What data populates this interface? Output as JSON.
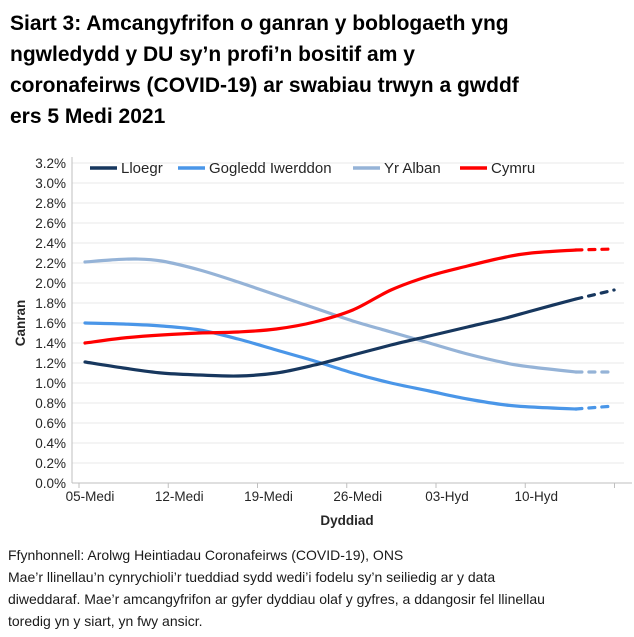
{
  "page": {
    "title": "Siart 3: Amcangyfrifon o ganran y boblogaeth yng\nngwledydd y DU sy’n profi’n bositif am y\ncoronafeirws (COVID-19) ar swabiau trwyn a gwddf\ners 5 Medi 2021",
    "source_line": "Ffynhonnell: Arolwg Heintiadau Coronafeirws (COVID-19), ONS",
    "note": "Mae’r llinellau’n cynrychioli’r tueddiad sydd wedi’i fodelu sy’n seiliedig ar y data\ndiweddaraf. Mae’r amcangyfrifon ar gyfer dyddiau olaf y gyfres, a ddangosir fel llinellau\ntoredig yn y siart, yn fwy ansicr."
  },
  "chart_data": {
    "type": "line",
    "title": "Siart 3: Amcangyfrifon o ganran y boblogaeth yng ngwledydd y DU sy’n profi’n bositif am y coronafeirws (COVID-19) ar swabiau trwyn a gwddf ers 5 Medi 2021",
    "xlabel": "Dyddiad",
    "ylabel": "Canran",
    "x_tick_labels": [
      "05-Medi",
      "12-Medi",
      "19-Medi",
      "26-Medi",
      "03-Hyd",
      "10-Hyd"
    ],
    "x_label_days": [
      0,
      7,
      14,
      21,
      28,
      35
    ],
    "x_tick_days": [
      0,
      7,
      14,
      21,
      28,
      35,
      42
    ],
    "x_range_days": [
      0,
      41.5
    ],
    "ylim": [
      0,
      3.2
    ],
    "y_tick_step": 0.2,
    "y_unit": "%",
    "grid": "horizontal-light",
    "legend_position": "top-inside",
    "dashed_from_day": 38.5,
    "colors": {
      "gridline": "#EAEAEA",
      "axis": "#BFBFBF",
      "text": "#262626"
    },
    "series": [
      {
        "name": "Lloegr",
        "color": "#17375E",
        "points": [
          [
            0,
            1.21
          ],
          [
            3,
            1.15
          ],
          [
            6,
            1.1
          ],
          [
            9,
            1.08
          ],
          [
            12,
            1.07
          ],
          [
            15,
            1.1
          ],
          [
            18,
            1.18
          ],
          [
            21,
            1.28
          ],
          [
            24,
            1.38
          ],
          [
            27,
            1.47
          ],
          [
            30,
            1.56
          ],
          [
            33,
            1.65
          ],
          [
            35,
            1.72
          ],
          [
            38.5,
            1.84
          ],
          [
            41.5,
            1.93
          ]
        ]
      },
      {
        "name": "Gogledd Iwerddon",
        "color": "#4A96E8",
        "points": [
          [
            0,
            1.6
          ],
          [
            3,
            1.59
          ],
          [
            6,
            1.57
          ],
          [
            9,
            1.53
          ],
          [
            12,
            1.44
          ],
          [
            15,
            1.33
          ],
          [
            18,
            1.22
          ],
          [
            21,
            1.1
          ],
          [
            24,
            1.0
          ],
          [
            27,
            0.92
          ],
          [
            30,
            0.84
          ],
          [
            33,
            0.78
          ],
          [
            35,
            0.76
          ],
          [
            38.5,
            0.74
          ],
          [
            41.5,
            0.77
          ]
        ]
      },
      {
        "name": "Yr Alban",
        "color": "#95B3D7",
        "points": [
          [
            0,
            2.21
          ],
          [
            2,
            2.23
          ],
          [
            4,
            2.24
          ],
          [
            6,
            2.22
          ],
          [
            9,
            2.13
          ],
          [
            12,
            2.01
          ],
          [
            15,
            1.88
          ],
          [
            18,
            1.75
          ],
          [
            21,
            1.62
          ],
          [
            24,
            1.51
          ],
          [
            27,
            1.4
          ],
          [
            30,
            1.29
          ],
          [
            33,
            1.2
          ],
          [
            35,
            1.16
          ],
          [
            38.5,
            1.11
          ],
          [
            41.5,
            1.11
          ]
        ]
      },
      {
        "name": "Cymru",
        "color": "#FF0000",
        "points": [
          [
            0,
            1.4
          ],
          [
            3,
            1.45
          ],
          [
            6,
            1.48
          ],
          [
            9,
            1.5
          ],
          [
            12,
            1.51
          ],
          [
            15,
            1.54
          ],
          [
            18,
            1.61
          ],
          [
            21,
            1.73
          ],
          [
            24,
            1.93
          ],
          [
            27,
            2.07
          ],
          [
            30,
            2.17
          ],
          [
            33,
            2.26
          ],
          [
            35,
            2.3
          ],
          [
            38.5,
            2.33
          ],
          [
            41.5,
            2.34
          ]
        ]
      }
    ],
    "draw_order": [
      2,
      1,
      0,
      3
    ]
  }
}
